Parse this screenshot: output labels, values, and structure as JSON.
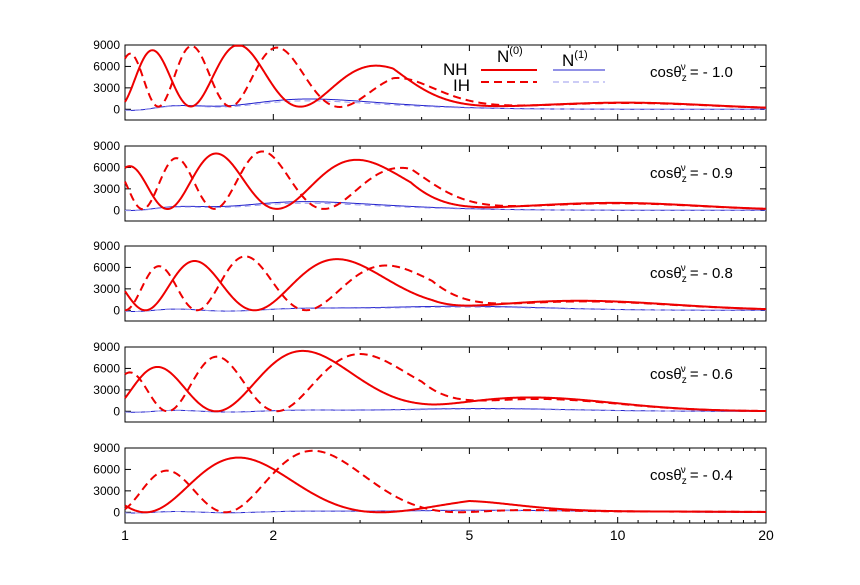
{
  "chart_data": {
    "type": "line",
    "x_scale": "log",
    "xlim": [
      1,
      20
    ],
    "x_ticks": [
      1,
      2,
      5,
      10,
      20
    ],
    "ylim": [
      -1500,
      9000
    ],
    "y_ticks": [
      0,
      3000,
      6000,
      9000
    ],
    "legend": {
      "col_headers": [
        "N(0)",
        "N(1)"
      ],
      "row_labels": [
        "NH",
        "IH"
      ],
      "placement": "top-center"
    },
    "colors": {
      "n0": "#ee0000",
      "n1_nh": "#2222cc",
      "n1_ih": "#9999ee",
      "axis": "#000000"
    },
    "panels": [
      {
        "label": "cosθz^ν = - 1.0",
        "label_prefix": "cosθ",
        "label_sub": "z",
        "label_sup": "ν",
        "label_value": "= - 1.0",
        "n0": {
          "freq": 3.4,
          "amp_hi": 4400,
          "amp_lo": 4400,
          "peak_x": 1.6,
          "decay_x": 3.5,
          "lowE_floor": 400,
          "ih_shift": 0.23
        },
        "n1": {
          "amp": 1300,
          "center": 2.5,
          "width": 0.55,
          "osc_amp": 350
        },
        "tail": {
          "center": 10.5,
          "height": 900,
          "width": 0.55
        }
      },
      {
        "label": "cosθz^ν = - 0.9",
        "label_prefix": "cosθ",
        "label_sub": "z",
        "label_sup": "ν",
        "label_value": "= - 0.9",
        "n0": {
          "freq": 3.05,
          "amp_hi": 4200,
          "amp_lo": 4000,
          "peak_x": 1.9,
          "decay_x": 3.8,
          "lowE_floor": 200,
          "ih_shift": 0.25
        },
        "n1": {
          "amp": 1100,
          "center": 2.4,
          "width": 0.6,
          "osc_amp": 250
        },
        "tail": {
          "center": 10.0,
          "height": 1000,
          "width": 0.55
        }
      },
      {
        "label": "cosθz^ν = - 0.8",
        "label_prefix": "cosθ",
        "label_sub": "z",
        "label_sup": "ν",
        "label_value": "= - 0.8",
        "n0": {
          "freq": 2.75,
          "amp_hi": 4000,
          "amp_lo": 3800,
          "peak_x": 2.0,
          "decay_x": 4.2,
          "lowE_floor": 0,
          "ih_shift": 0.25
        },
        "n1": {
          "amp": 600,
          "center": 4.5,
          "width": 0.6,
          "osc_amp": 250
        },
        "tail": {
          "center": 8.5,
          "height": 1300,
          "width": 0.6
        }
      },
      {
        "label": "cosθz^ν = - 0.6",
        "label_prefix": "cosθ",
        "label_sub": "z",
        "label_sup": "ν",
        "label_value": "= - 0.6",
        "n0": {
          "freq": 2.3,
          "amp_hi": 4300,
          "amp_lo": 4300,
          "peak_x": 2.2,
          "decay_x": 4.0,
          "lowE_floor": 0,
          "ih_shift": 0.25
        },
        "n1": {
          "amp": 400,
          "center": 5.0,
          "width": 0.6,
          "osc_amp": 200
        },
        "tail": {
          "center": 6.8,
          "height": 1800,
          "width": 0.55
        }
      },
      {
        "label": "cosθz^ν = - 0.4",
        "label_prefix": "cosθ",
        "label_sub": "z",
        "label_sup": "ν",
        "label_value": "= - 0.4",
        "n0": {
          "freq": 1.65,
          "amp_hi": 4400,
          "amp_lo": 4400,
          "peak_x": 2.5,
          "decay_x": 5.0,
          "lowE_floor": 0,
          "ih_shift": 0.25
        },
        "n1": {
          "amp": 300,
          "center": 5.0,
          "width": 0.7,
          "osc_amp": 150
        },
        "tail": {
          "center": 12.0,
          "height": 100,
          "width": 0.6
        }
      }
    ]
  }
}
